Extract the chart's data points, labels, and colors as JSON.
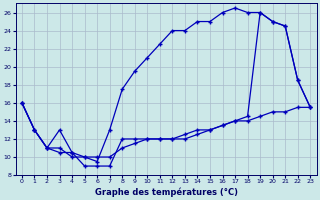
{
  "title": "Graphe des températures (°C)",
  "background_color": "#cce8e8",
  "grid_color": "#aabbcc",
  "line_color": "#0000bb",
  "xlim": [
    -0.5,
    23.5
  ],
  "ylim": [
    8,
    27
  ],
  "xticks": [
    0,
    1,
    2,
    3,
    4,
    5,
    6,
    7,
    8,
    9,
    10,
    11,
    12,
    13,
    14,
    15,
    16,
    17,
    18,
    19,
    20,
    21,
    22,
    23
  ],
  "yticks": [
    8,
    10,
    12,
    14,
    16,
    18,
    20,
    22,
    24,
    26
  ],
  "line_min_x": [
    0,
    1,
    2,
    3,
    4,
    5,
    6,
    7,
    8,
    9,
    10,
    11,
    12,
    13,
    14,
    15,
    16,
    17,
    18,
    19,
    20,
    21,
    22,
    23
  ],
  "line_min_y": [
    16,
    13,
    11,
    11,
    10,
    10,
    10,
    10,
    11,
    11.5,
    12,
    12,
    12,
    12.5,
    13,
    13,
    13.5,
    14,
    14,
    14.5,
    15,
    15,
    15.5,
    15.5
  ],
  "line_max_x": [
    0,
    1,
    2,
    3,
    4,
    5,
    6,
    7,
    8,
    9,
    10,
    11,
    12,
    13,
    14,
    15,
    16,
    17,
    18,
    19,
    20,
    21,
    22,
    23
  ],
  "line_max_y": [
    16,
    13,
    11,
    13,
    10.5,
    10,
    9.5,
    13,
    17.5,
    19.5,
    21,
    22.5,
    24,
    24,
    25,
    25,
    26,
    26.5,
    26,
    26,
    25,
    24.5,
    18.5,
    15.5
  ],
  "line_mid_x": [
    0,
    1,
    2,
    3,
    4,
    5,
    6,
    7,
    8,
    9,
    10,
    11,
    12,
    13,
    14,
    15,
    16,
    17,
    18,
    19,
    20,
    21,
    22,
    23
  ],
  "line_mid_y": [
    16,
    13,
    11,
    10.5,
    10.5,
    9,
    9,
    9,
    12,
    12,
    12,
    12,
    12,
    12,
    12.5,
    13,
    13.5,
    14,
    14.5,
    26,
    25,
    24.5,
    18.5,
    15.5
  ]
}
